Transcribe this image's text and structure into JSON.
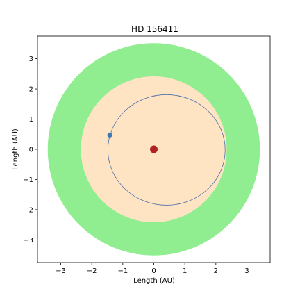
{
  "chart_data": {
    "type": "scatter",
    "title": "HD 156411",
    "xlabel": "Length (AU)",
    "ylabel": "Length (AU)",
    "xlim": [
      -3.75,
      3.75
    ],
    "ylim": [
      -3.75,
      3.75
    ],
    "x_ticks": [
      -3,
      -2,
      -1,
      0,
      1,
      2,
      3
    ],
    "y_ticks": [
      -3,
      -2,
      -1,
      0,
      1,
      2,
      3
    ],
    "x_tick_labels": [
      "−3",
      "−2",
      "−1",
      "0",
      "1",
      "2",
      "3"
    ],
    "y_tick_labels": [
      "−3",
      "−2",
      "−1",
      "0",
      "1",
      "2",
      "3"
    ],
    "grid": false,
    "habitable_zone": {
      "outer_radius": 3.42,
      "inner_radius": 2.35,
      "outer_color": "#90ee90",
      "inner_color": "#ffe4c4"
    },
    "star": {
      "x": 0,
      "y": 0,
      "color": "#b22222"
    },
    "orbit": {
      "center_x": 0.41,
      "center_y": -0.02,
      "semi_major_x": 1.89,
      "semi_minor_y": 1.83,
      "color": "#4b6fa8"
    },
    "planet": {
      "x": -1.42,
      "y": 0.47,
      "color": "#3f77b4"
    }
  }
}
